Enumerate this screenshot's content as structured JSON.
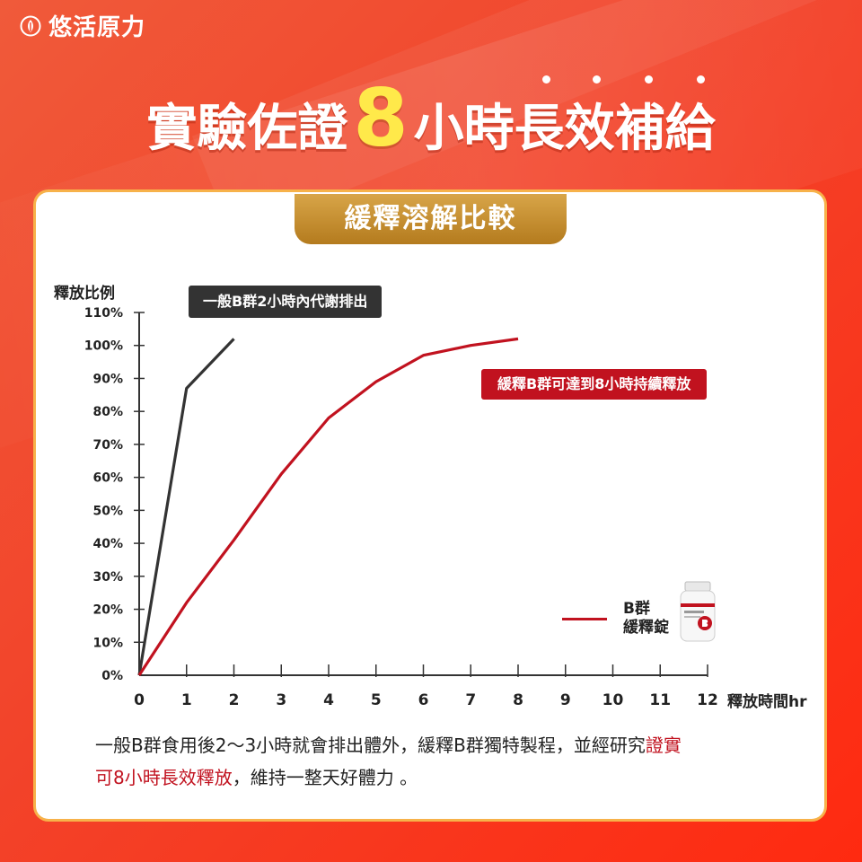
{
  "brand": {
    "name": "悠活原力",
    "icon": "leaf-drop-icon"
  },
  "headline": {
    "part1": "實驗佐證",
    "number": "8",
    "part2": "小時長效補給"
  },
  "section_title": "緩釋溶解比較",
  "callouts": {
    "general": "一般B群2小時內代謝排出",
    "slow": "緩釋B群可達到8小時持續釋放"
  },
  "legend": {
    "line1": "B群",
    "line2": "緩釋錠"
  },
  "description": {
    "text_a": "一般B群食用後2～3小時就會排出體外，緩釋B群獨特製程，並經研究",
    "highlight_a": "證實",
    "highlight_b": "可8小時長效釋放",
    "text_b": "，維持一整天好體力 。"
  },
  "colors": {
    "red": "#c1121f",
    "dark": "#333333",
    "accent_yellow": "#ffe94a",
    "gold": "#c48f2f"
  },
  "chart_data": {
    "type": "line",
    "title": "緩釋溶解比較",
    "xlabel": "釋放時間hr",
    "ylabel": "釋放比例",
    "xlim": [
      0,
      12
    ],
    "ylim": [
      0,
      110
    ],
    "x_ticks": [
      0,
      1,
      2,
      3,
      4,
      5,
      6,
      7,
      8,
      9,
      10,
      11,
      12
    ],
    "y_ticks": [
      "0%",
      "10%",
      "20%",
      "30%",
      "40%",
      "50%",
      "60%",
      "70%",
      "80%",
      "90%",
      "100%",
      "110%"
    ],
    "series": [
      {
        "name": "一般B群",
        "color": "#333333",
        "x": [
          0,
          1,
          2
        ],
        "y": [
          0,
          87,
          102
        ]
      },
      {
        "name": "B群 緩釋錠",
        "color": "#c1121f",
        "x": [
          0,
          1,
          2,
          3,
          4,
          5,
          6,
          7,
          8
        ],
        "y": [
          0,
          22,
          41,
          61,
          78,
          89,
          97,
          100,
          102
        ]
      }
    ],
    "grid": false
  }
}
